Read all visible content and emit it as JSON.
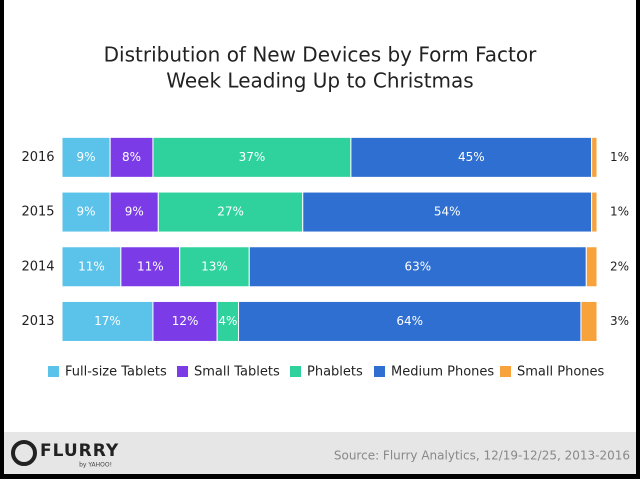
{
  "chart_data": {
    "type": "stacked-bar-horizontal",
    "title": "Distribution of New Devices by Form Factor",
    "subtitle": "Week Leading Up to Christmas",
    "categories": [
      "2016",
      "2015",
      "2014",
      "2013"
    ],
    "series": [
      {
        "name": "Full-size Tablets",
        "color": "#5bc2e9",
        "values": [
          9,
          9,
          11,
          17
        ],
        "value_labels": [
          "9%",
          "9%",
          "11%",
          "17%"
        ]
      },
      {
        "name": "Small Tablets",
        "color": "#7b3ce8",
        "values": [
          8,
          9,
          11,
          12
        ],
        "value_labels": [
          "8%",
          "9%",
          "11%",
          "12%"
        ]
      },
      {
        "name": "Phablets",
        "color": "#2fd29c",
        "values": [
          37,
          27,
          13,
          4
        ],
        "value_labels": [
          "37%",
          "27%",
          "13%",
          "4%"
        ]
      },
      {
        "name": "Medium Phones",
        "color": "#2f6fd1",
        "values": [
          45,
          54,
          63,
          64
        ],
        "value_labels": [
          "45%",
          "54%",
          "63%",
          "64%"
        ]
      },
      {
        "name": "Small Phones",
        "color": "#f7a23b",
        "values": [
          1,
          1,
          2,
          3
        ],
        "value_labels": [
          "1%",
          "1%",
          "2%",
          "3%"
        ]
      }
    ]
  },
  "footer": {
    "logo": "FLURRY",
    "logo_tagline": "by YAHOO!",
    "source": "Source: Flurry Analytics, 12/19-12/25, 2013-2016"
  }
}
